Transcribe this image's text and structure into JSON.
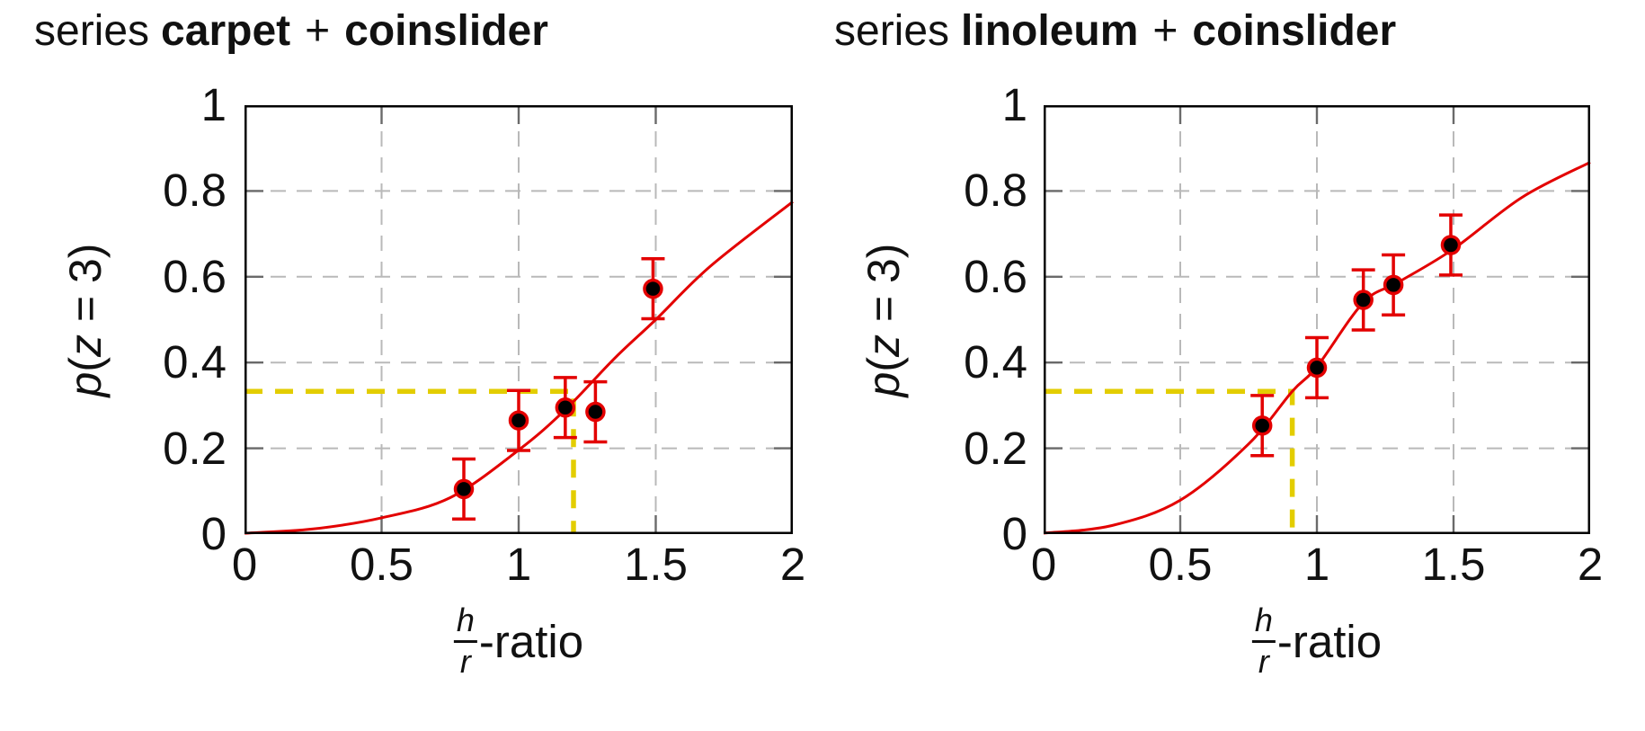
{
  "figure": {
    "background": "#ffffff"
  },
  "colors": {
    "fit_curve_red": "#e30000",
    "marker_fill": "#000000",
    "marker_ring": "#e30000",
    "error_bar": "#e30000",
    "threshold_yellow": "#e3cd00",
    "gridline_gray": "#b9b9b9",
    "tick_mark_gray": "#6a6a6a",
    "axis_black": "#000000"
  },
  "chart_data": [
    {
      "type": "scatter",
      "title": {
        "prefix": "series",
        "series_a": "carpet",
        "plus": "+",
        "series_b": "coinslider"
      },
      "ylabel": {
        "p": "p",
        "open": "(",
        "z": "z",
        "rest": " = 3)"
      },
      "xlabel": {
        "numerator": "h",
        "denominator": "r",
        "suffix": "-ratio"
      },
      "xlim": [
        0,
        2
      ],
      "ylim": [
        0,
        1
      ],
      "grid": true,
      "x_ticks": {
        "values": [
          0,
          0.5,
          1,
          1.5,
          2
        ],
        "labels": [
          "0",
          "0.5",
          "1",
          "1.5",
          "2"
        ]
      },
      "y_ticks": {
        "values": [
          0,
          0.2,
          0.4,
          0.6,
          0.8,
          1
        ],
        "labels": [
          "0",
          "0.2",
          "0.4",
          "0.6",
          "0.8",
          "1"
        ]
      },
      "points": {
        "x": [
          0.8,
          1.0,
          1.17,
          1.28,
          1.49
        ],
        "y": [
          0.105,
          0.265,
          0.295,
          0.285,
          0.572
        ],
        "yerr": [
          0.07,
          0.07,
          0.07,
          0.07,
          0.07
        ]
      },
      "fit_curve": {
        "x": [
          0,
          0.25,
          0.5,
          0.75,
          1.0,
          1.17,
          1.35,
          1.5,
          1.7,
          2.0
        ],
        "y": [
          0.002,
          0.012,
          0.038,
          0.085,
          0.196,
          0.29,
          0.41,
          0.5,
          0.625,
          0.775
        ]
      },
      "threshold": {
        "x": 1.2,
        "y": 0.333
      }
    },
    {
      "type": "scatter",
      "title": {
        "prefix": "series",
        "series_a": "linoleum",
        "plus": "+",
        "series_b": "coinslider"
      },
      "ylabel": {
        "p": "p",
        "open": "(",
        "z": "z",
        "rest": " = 3)"
      },
      "xlabel": {
        "numerator": "h",
        "denominator": "r",
        "suffix": "-ratio"
      },
      "xlim": [
        0,
        2
      ],
      "ylim": [
        0,
        1
      ],
      "grid": true,
      "x_ticks": {
        "values": [
          0,
          0.5,
          1,
          1.5,
          2
        ],
        "labels": [
          "0",
          "0.5",
          "1",
          "1.5",
          "2"
        ]
      },
      "y_ticks": {
        "values": [
          0,
          0.2,
          0.4,
          0.6,
          0.8,
          1
        ],
        "labels": [
          "0",
          "0.2",
          "0.4",
          "0.6",
          "0.8",
          "1"
        ]
      },
      "points": {
        "x": [
          0.8,
          1.0,
          1.17,
          1.28,
          1.49
        ],
        "y": [
          0.253,
          0.388,
          0.546,
          0.581,
          0.674
        ],
        "yerr": [
          0.07,
          0.07,
          0.07,
          0.07,
          0.07
        ]
      },
      "fit_curve": {
        "x": [
          0,
          0.25,
          0.5,
          0.75,
          0.91,
          1.0,
          1.17,
          1.3,
          1.5,
          1.75,
          2.0
        ],
        "y": [
          0.002,
          0.02,
          0.079,
          0.21,
          0.333,
          0.39,
          0.54,
          0.588,
          0.665,
          0.785,
          0.867
        ]
      },
      "threshold": {
        "x": 0.91,
        "y": 0.333
      }
    }
  ]
}
